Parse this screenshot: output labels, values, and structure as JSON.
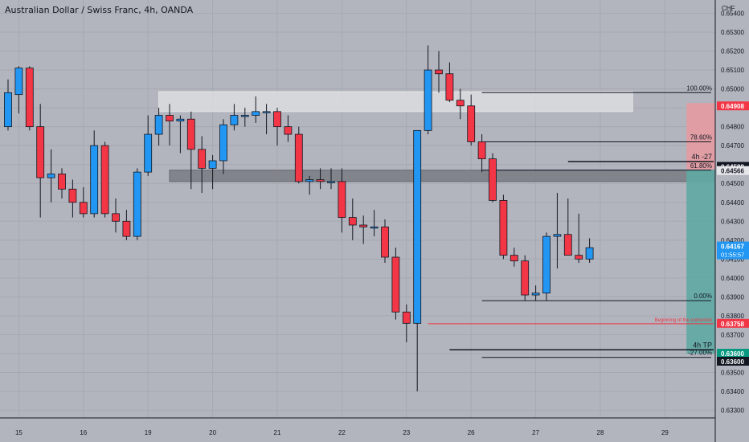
{
  "header": {
    "title": "Australian Dollar / Swiss Franc, 4h, OANDA",
    "currency": "CHF"
  },
  "colors": {
    "background": "#b2b5be",
    "grid": "#a6a9b1",
    "bull": "#2196f3",
    "bear": "#f23645",
    "wick": "#131722",
    "risk_zone": "#e89aa0",
    "reward_zone": "#5fa9a3",
    "supply_zone": "#dcdde0",
    "demand_zone": "#7d7f86",
    "entry_label": "#f23645",
    "current_label": "#2196f3",
    "level_label": "#131722",
    "tp_label": "#089981",
    "red_line": "#f23645"
  },
  "chart_data": {
    "type": "candlestick",
    "title": "Australian Dollar / Swiss Franc, 4h, OANDA",
    "ylim": [
      0.6326,
      0.6547
    ],
    "y_ticks": [
      "0.65400",
      "0.65300",
      "0.65200",
      "0.65100",
      "0.65000",
      "0.64900",
      "0.64800",
      "0.64700",
      "0.64600",
      "0.64500",
      "0.64400",
      "0.64300",
      "0.64200",
      "0.64100",
      "0.64000",
      "0.63900",
      "0.63800",
      "0.63700",
      "0.63600",
      "0.63500",
      "0.63400",
      "0.63300"
    ],
    "x_ticks": [
      {
        "label": "15",
        "index": 1
      },
      {
        "label": "16",
        "index": 7
      },
      {
        "label": "19",
        "index": 13
      },
      {
        "label": "20",
        "index": 19
      },
      {
        "label": "21",
        "index": 25
      },
      {
        "label": "22",
        "index": 31
      },
      {
        "label": "23",
        "index": 37
      },
      {
        "label": "26",
        "index": 43
      },
      {
        "label": "27",
        "index": 49
      },
      {
        "label": "28",
        "index": 55
      },
      {
        "label": "29",
        "index": 61
      }
    ],
    "candles": [
      {
        "o": 0.648,
        "h": 0.6505,
        "l": 0.6478,
        "c": 0.6498
      },
      {
        "o": 0.6497,
        "h": 0.6512,
        "l": 0.6487,
        "c": 0.6511
      },
      {
        "o": 0.6511,
        "h": 0.6512,
        "l": 0.6478,
        "c": 0.648
      },
      {
        "o": 0.648,
        "h": 0.6492,
        "l": 0.6432,
        "c": 0.6453
      },
      {
        "o": 0.6453,
        "h": 0.6468,
        "l": 0.644,
        "c": 0.6455
      },
      {
        "o": 0.6455,
        "h": 0.6458,
        "l": 0.6442,
        "c": 0.6447
      },
      {
        "o": 0.6447,
        "h": 0.6452,
        "l": 0.6432,
        "c": 0.644
      },
      {
        "o": 0.644,
        "h": 0.6448,
        "l": 0.6432,
        "c": 0.6434
      },
      {
        "o": 0.6434,
        "h": 0.6478,
        "l": 0.6432,
        "c": 0.647
      },
      {
        "o": 0.647,
        "h": 0.6472,
        "l": 0.6432,
        "c": 0.6434
      },
      {
        "o": 0.6434,
        "h": 0.6442,
        "l": 0.6424,
        "c": 0.643
      },
      {
        "o": 0.643,
        "h": 0.6436,
        "l": 0.642,
        "c": 0.6422
      },
      {
        "o": 0.6422,
        "h": 0.6458,
        "l": 0.642,
        "c": 0.6456
      },
      {
        "o": 0.6456,
        "h": 0.6486,
        "l": 0.6454,
        "c": 0.6476
      },
      {
        "o": 0.6476,
        "h": 0.649,
        "l": 0.647,
        "c": 0.6486
      },
      {
        "o": 0.6486,
        "h": 0.6492,
        "l": 0.647,
        "c": 0.6483
      },
      {
        "o": 0.6483,
        "h": 0.6486,
        "l": 0.6466,
        "c": 0.6484
      },
      {
        "o": 0.6484,
        "h": 0.6488,
        "l": 0.6447,
        "c": 0.6468
      },
      {
        "o": 0.6468,
        "h": 0.6475,
        "l": 0.6445,
        "c": 0.6458
      },
      {
        "o": 0.6458,
        "h": 0.6465,
        "l": 0.6447,
        "c": 0.6462
      },
      {
        "o": 0.6462,
        "h": 0.6484,
        "l": 0.6455,
        "c": 0.6481
      },
      {
        "o": 0.6481,
        "h": 0.6492,
        "l": 0.6478,
        "c": 0.6486
      },
      {
        "o": 0.6486,
        "h": 0.649,
        "l": 0.648,
        "c": 0.6486
      },
      {
        "o": 0.6486,
        "h": 0.6496,
        "l": 0.6482,
        "c": 0.6488
      },
      {
        "o": 0.6488,
        "h": 0.6492,
        "l": 0.6476,
        "c": 0.6488
      },
      {
        "o": 0.6488,
        "h": 0.649,
        "l": 0.647,
        "c": 0.648
      },
      {
        "o": 0.648,
        "h": 0.6486,
        "l": 0.6472,
        "c": 0.6476
      },
      {
        "o": 0.6476,
        "h": 0.648,
        "l": 0.645,
        "c": 0.6451
      },
      {
        "o": 0.6451,
        "h": 0.6454,
        "l": 0.6444,
        "c": 0.6452
      },
      {
        "o": 0.6452,
        "h": 0.6458,
        "l": 0.6447,
        "c": 0.6451
      },
      {
        "o": 0.6451,
        "h": 0.6458,
        "l": 0.6447,
        "c": 0.6451
      },
      {
        "o": 0.6451,
        "h": 0.6458,
        "l": 0.6424,
        "c": 0.6432
      },
      {
        "o": 0.6432,
        "h": 0.6442,
        "l": 0.642,
        "c": 0.6428
      },
      {
        "o": 0.6428,
        "h": 0.6433,
        "l": 0.6418,
        "c": 0.6427
      },
      {
        "o": 0.6427,
        "h": 0.6436,
        "l": 0.6422,
        "c": 0.6427
      },
      {
        "o": 0.6427,
        "h": 0.6431,
        "l": 0.6408,
        "c": 0.6411
      },
      {
        "o": 0.6411,
        "h": 0.6416,
        "l": 0.6378,
        "c": 0.6382
      },
      {
        "o": 0.6382,
        "h": 0.6386,
        "l": 0.6366,
        "c": 0.6376
      },
      {
        "o": 0.6376,
        "h": 0.6478,
        "l": 0.634,
        "c": 0.6478
      },
      {
        "o": 0.6478,
        "h": 0.6523,
        "l": 0.6476,
        "c": 0.651
      },
      {
        "o": 0.651,
        "h": 0.652,
        "l": 0.6498,
        "c": 0.6508
      },
      {
        "o": 0.6508,
        "h": 0.6514,
        "l": 0.6493,
        "c": 0.6494
      },
      {
        "o": 0.6494,
        "h": 0.65,
        "l": 0.6484,
        "c": 0.6491
      },
      {
        "o": 0.6491,
        "h": 0.6497,
        "l": 0.647,
        "c": 0.6472
      },
      {
        "o": 0.6472,
        "h": 0.6476,
        "l": 0.6456,
        "c": 0.6463
      },
      {
        "o": 0.6463,
        "h": 0.6466,
        "l": 0.644,
        "c": 0.6441
      },
      {
        "o": 0.6441,
        "h": 0.6444,
        "l": 0.641,
        "c": 0.6412
      },
      {
        "o": 0.6412,
        "h": 0.6416,
        "l": 0.6406,
        "c": 0.6409
      },
      {
        "o": 0.6409,
        "h": 0.6412,
        "l": 0.6388,
        "c": 0.6391
      },
      {
        "o": 0.6391,
        "h": 0.6396,
        "l": 0.6388,
        "c": 0.6392
      },
      {
        "o": 0.6392,
        "h": 0.6424,
        "l": 0.6388,
        "c": 0.6422
      },
      {
        "o": 0.6422,
        "h": 0.6445,
        "l": 0.6405,
        "c": 0.6423
      },
      {
        "o": 0.6423,
        "h": 0.6442,
        "l": 0.6412,
        "c": 0.6412
      },
      {
        "o": 0.6412,
        "h": 0.6434,
        "l": 0.6408,
        "c": 0.641
      },
      {
        "o": 0.641,
        "h": 0.6421,
        "l": 0.6408,
        "c": 0.6416
      }
    ],
    "zones": [
      {
        "name": "supply-zone",
        "from_index": 14,
        "to_index": 58,
        "top": 0.64985,
        "bottom": 0.6488
      },
      {
        "name": "demand-zone",
        "from_index": 15,
        "to_index": 72,
        "top": 0.6457,
        "bottom": 0.6451
      }
    ],
    "position": {
      "from_index": 63,
      "to_index": 76,
      "stop": 0.64925,
      "entry": 0.64573,
      "target": 0.636
    },
    "fib_levels": [
      {
        "label": "100.00%",
        "value": 0.6498,
        "from_index": 44
      },
      {
        "label": "78.60%",
        "value": 0.6472,
        "from_index": 44
      },
      {
        "label": "61.80%",
        "value": 0.6457,
        "from_index": 44
      },
      {
        "label": "0.00%",
        "value": 0.6388,
        "from_index": 44
      },
      {
        "label": "-27.00%",
        "value": 0.6358,
        "from_index": 44
      }
    ],
    "annotations": [
      {
        "label": "4h -27",
        "value": 0.64615,
        "from_index": 52
      },
      {
        "label": "4h TP",
        "value": 0.6362,
        "from_index": 41
      },
      {
        "label": "Beginning of the correction",
        "value": 0.63758,
        "from_index": 39,
        "color": "red"
      }
    ],
    "price_labels": [
      {
        "text": "0.64908",
        "value": 0.64908,
        "kind": "entry"
      },
      {
        "text": "0.64588",
        "value": 0.64588,
        "kind": "level"
      },
      {
        "text": "0.64566",
        "value": 0.64566,
        "kind": "level-light"
      },
      {
        "text": "0.64167",
        "value": 0.64167,
        "kind": "current"
      },
      {
        "text": "0.63758",
        "value": 0.63758,
        "kind": "entry"
      },
      {
        "text": "0.63600",
        "value": 0.636,
        "kind": "tp"
      },
      {
        "text": "0.63600",
        "value": 0.636,
        "kind": "level"
      }
    ],
    "countdown": "01:55:57"
  }
}
